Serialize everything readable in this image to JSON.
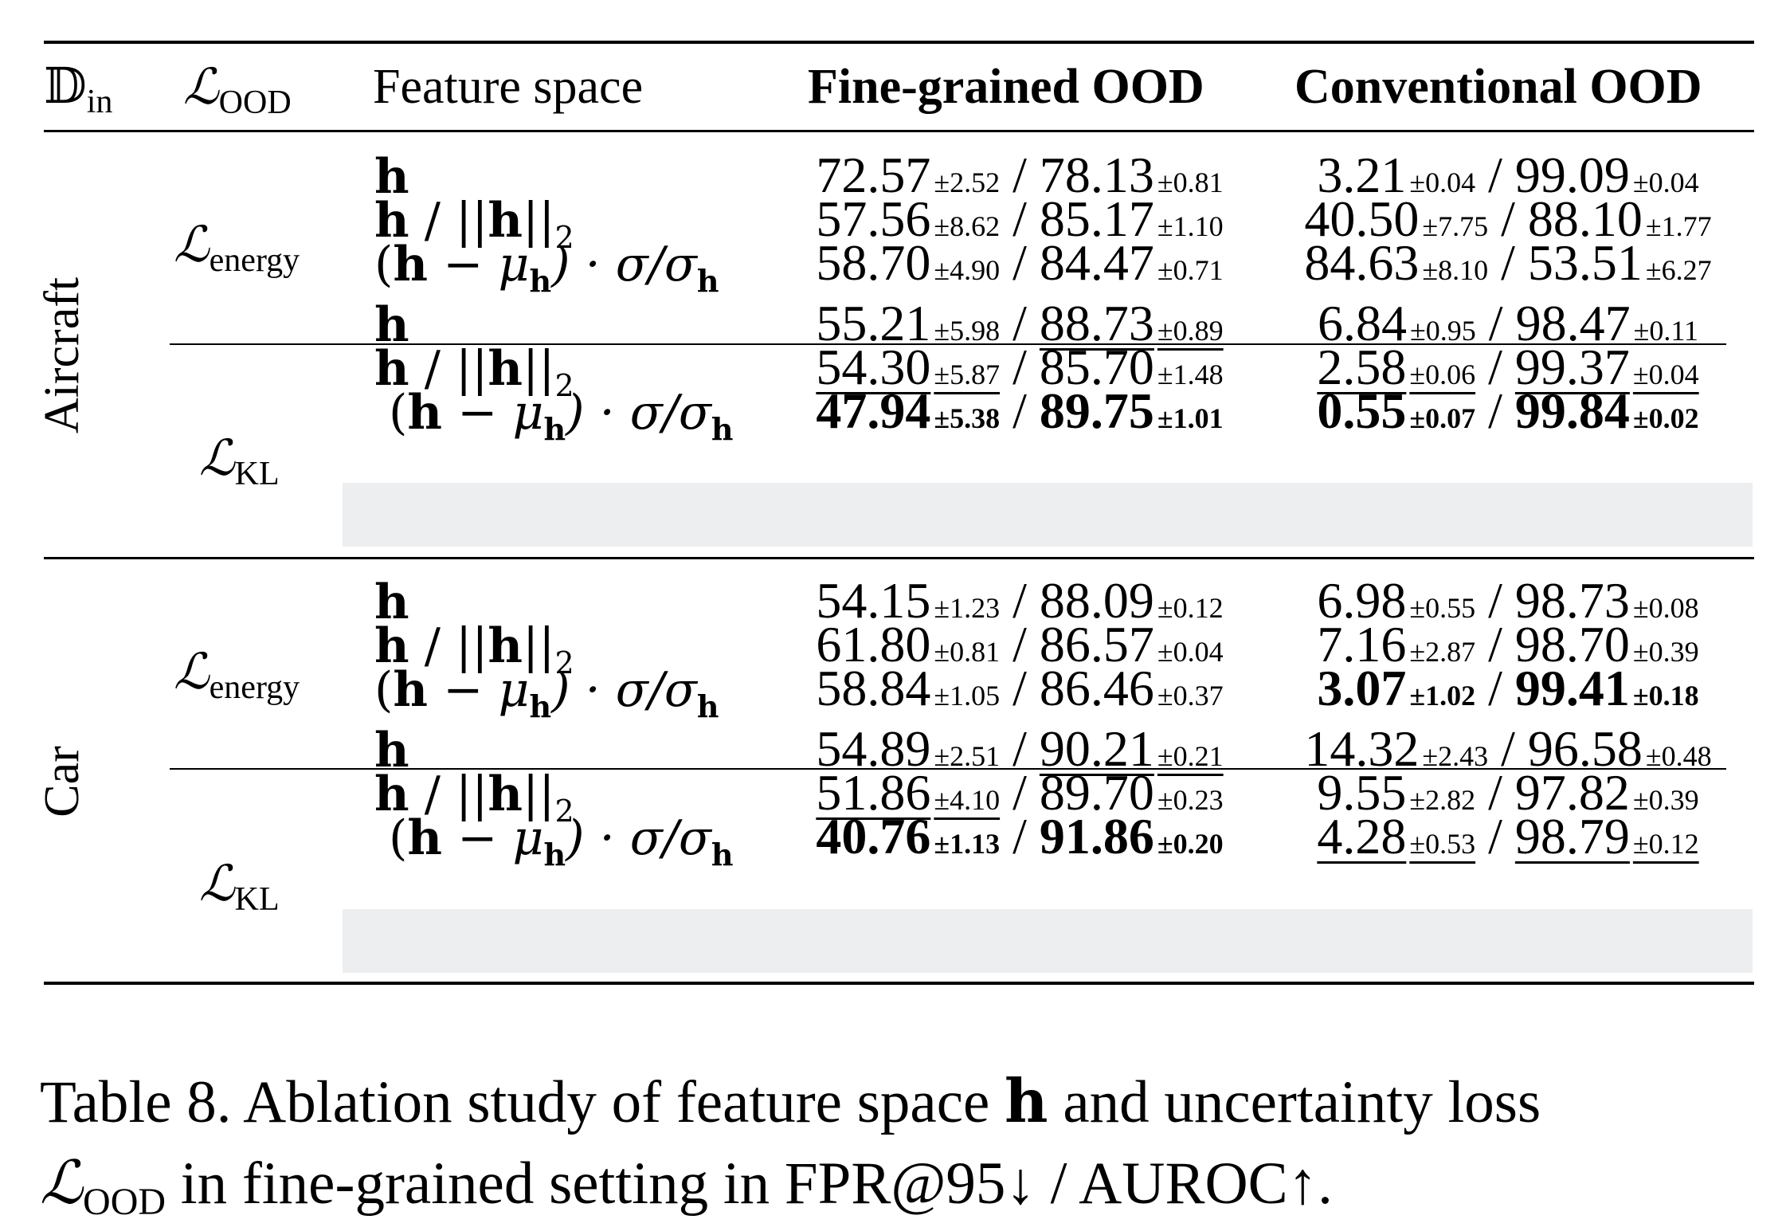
{
  "header": {
    "din": "𝔻",
    "din_sub": "in",
    "lood": "ℒ",
    "lood_sub": "OOD",
    "feature_space": "Feature space",
    "fine": "Fine-grained OOD",
    "conv": "Conventional OOD"
  },
  "groups": [
    {
      "dataset": "Aircraft",
      "blocks": [
        {
          "loss": "ℒ",
          "loss_sub": "energy",
          "rows": [
            {
              "fine_a": "72.57",
              "fine_a_std": "±2.52",
              "fine_b": "78.13",
              "fine_b_std": "±0.81",
              "conv_a": "3.21",
              "conv_a_std": "±0.04",
              "conv_b": "99.09",
              "conv_b_std": "±0.04"
            },
            {
              "fine_a": "57.56",
              "fine_a_std": "±8.62",
              "fine_b": "85.17",
              "fine_b_std": "±1.10",
              "conv_a": "40.50",
              "conv_a_std": "±7.75",
              "conv_b": "88.10",
              "conv_b_std": "±1.77"
            },
            {
              "fine_a": "58.70",
              "fine_a_std": "±4.90",
              "fine_b": "84.47",
              "fine_b_std": "±0.71",
              "conv_a": "84.63",
              "conv_a_std": "±8.10",
              "conv_b": "53.51",
              "conv_b_std": "±6.27"
            }
          ]
        },
        {
          "loss": "ℒ",
          "loss_sub": "KL",
          "rows": [
            {
              "fine_a": "55.21",
              "fine_a_std": "±5.98",
              "fine_b": "88.73",
              "fine_b_std": "±0.89",
              "conv_a": "6.84",
              "conv_a_std": "±0.95",
              "conv_b": "98.47",
              "conv_b_std": "±0.11"
            },
            {
              "fine_a": "54.30",
              "fine_a_std": "±5.87",
              "fine_b": "85.70",
              "fine_b_std": "±1.48",
              "conv_a": "2.58",
              "conv_a_std": "±0.06",
              "conv_b": "99.37",
              "conv_b_std": "±0.04"
            },
            {
              "fine_a": "47.94",
              "fine_a_std": "±5.38",
              "fine_b": "89.75",
              "fine_b_std": "±1.01",
              "conv_a": "0.55",
              "conv_a_std": "±0.07",
              "conv_b": "99.84",
              "conv_b_std": "±0.02"
            }
          ]
        }
      ]
    },
    {
      "dataset": "Car",
      "blocks": [
        {
          "loss": "ℒ",
          "loss_sub": "energy",
          "rows": [
            {
              "fine_a": "54.15",
              "fine_a_std": "±1.23",
              "fine_b": "88.09",
              "fine_b_std": "±0.12",
              "conv_a": "6.98",
              "conv_a_std": "±0.55",
              "conv_b": "98.73",
              "conv_b_std": "±0.08"
            },
            {
              "fine_a": "61.80",
              "fine_a_std": "±0.81",
              "fine_b": "86.57",
              "fine_b_std": "±0.04",
              "conv_a": "7.16",
              "conv_a_std": "±2.87",
              "conv_b": "98.70",
              "conv_b_std": "±0.39"
            },
            {
              "fine_a": "58.84",
              "fine_a_std": "±1.05",
              "fine_b": "86.46",
              "fine_b_std": "±0.37",
              "conv_a": "3.07",
              "conv_a_std": "±1.02",
              "conv_b": "99.41",
              "conv_b_std": "±0.18"
            }
          ]
        },
        {
          "loss": "ℒ",
          "loss_sub": "KL",
          "rows": [
            {
              "fine_a": "54.89",
              "fine_a_std": "±2.51",
              "fine_b": "90.21",
              "fine_b_std": "±0.21",
              "conv_a": "14.32",
              "conv_a_std": "±2.43",
              "conv_b": "96.58",
              "conv_b_std": "±0.48"
            },
            {
              "fine_a": "51.86",
              "fine_a_std": "±4.10",
              "fine_b": "89.70",
              "fine_b_std": "±0.23",
              "conv_a": "9.55",
              "conv_a_std": "±2.82",
              "conv_b": "97.82",
              "conv_b_std": "±0.39"
            },
            {
              "fine_a": "40.76",
              "fine_a_std": "±1.13",
              "fine_b": "91.86",
              "fine_b_std": "±0.20",
              "conv_a": "4.28",
              "conv_a_std": "±0.53",
              "conv_b": "98.79",
              "conv_b_std": "±0.12"
            }
          ]
        }
      ]
    }
  ],
  "feature_rows": {
    "h": "h",
    "norm_sep": " / ||",
    "norm_close": "||",
    "norm_sub": "2",
    "std_open": "(",
    "minus_mu": " − μ",
    "mu_sub": "h",
    "std_close": ") · σ/σ",
    "sigma_sub": "h"
  },
  "caption": {
    "line1_a": "Table 8.  Ablation study of feature space ",
    "line1_h": "h",
    "line1_b": " and uncertainty loss",
    "line2_l": "ℒ",
    "line2_sub": "OOD",
    "line2_b": " in fine-grained setting in FPR@95↓ / AUROC↑."
  }
}
